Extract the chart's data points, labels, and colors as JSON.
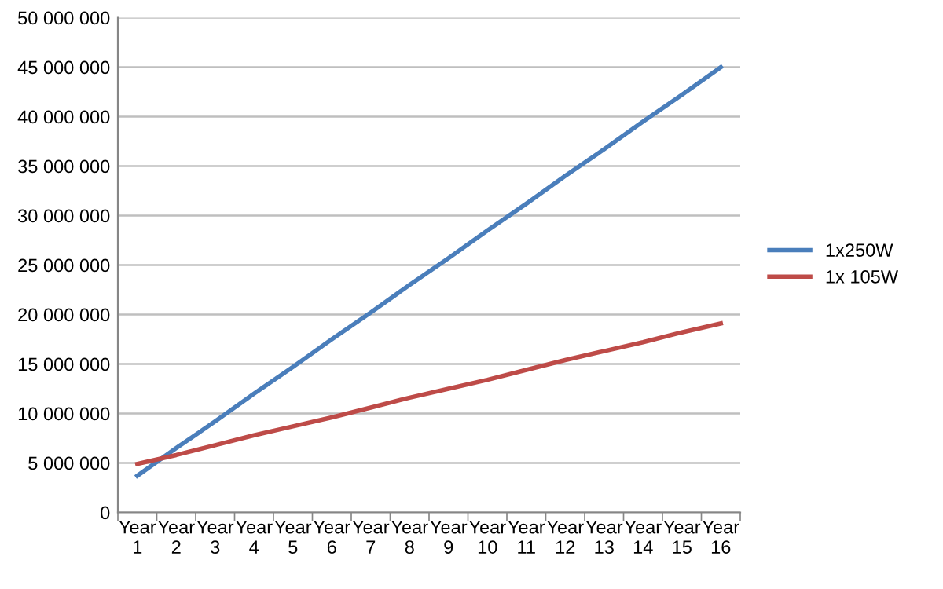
{
  "chart_data": {
    "type": "line",
    "categories": [
      "Year\n1",
      "Year\n2",
      "Year\n3",
      "Year\n4",
      "Year\n5",
      "Year\n6",
      "Year\n7",
      "Year\n8",
      "Year\n9",
      "Year\n10",
      "Year\n11",
      "Year\n12",
      "Year\n13",
      "Year\n14",
      "Year\n15",
      "Year\n16"
    ],
    "series": [
      {
        "name": "1x250W",
        "color": "#4a7ebb",
        "values": [
          3700000,
          6500000,
          9200000,
          12000000,
          14700000,
          17500000,
          20200000,
          23000000,
          25700000,
          28500000,
          31200000,
          34000000,
          36700000,
          39500000,
          42200000,
          45000000
        ]
      },
      {
        "name": "1x 105W",
        "color": "#be4b48",
        "values": [
          4900000,
          5800000,
          6800000,
          7800000,
          8700000,
          9600000,
          10600000,
          11600000,
          12500000,
          13400000,
          14400000,
          15400000,
          16300000,
          17200000,
          18200000,
          19100000
        ]
      }
    ],
    "ylim": [
      0,
      50000000
    ],
    "yticks": [
      0,
      {
        "value": 5000000,
        "label": "5 000 000"
      },
      {
        "value": 10000000,
        "label": "10 000 000"
      },
      {
        "value": 15000000,
        "label": "15 000 000"
      },
      {
        "value": 20000000,
        "label": "20 000 000"
      },
      {
        "value": 25000000,
        "label": "25 000 000"
      },
      {
        "value": 30000000,
        "label": "30 000 000"
      },
      {
        "value": 35000000,
        "label": "35 000 000"
      },
      {
        "value": 40000000,
        "label": "40 000 000"
      },
      {
        "value": 45000000,
        "label": "45 000 000"
      },
      {
        "value": 50000000,
        "label": "50 000 000"
      }
    ],
    "grid": "y",
    "legend": "right",
    "marker": "none",
    "line_style": "solid"
  }
}
